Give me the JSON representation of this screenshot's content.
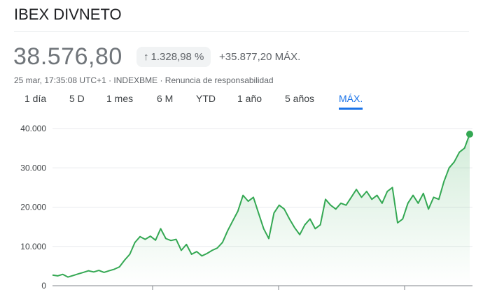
{
  "header": {
    "title": "IBEX DIVNETO"
  },
  "quote": {
    "price": "38.576,80",
    "change_pct": "1.328,98 %",
    "change_abs": "+35.877,20 MÁX.",
    "timestamp": "25 mar, 17:35:08 UTC+1",
    "exchange": "INDEXBME",
    "disclaimer": "Renuncia de responsabilidad",
    "separator": " · "
  },
  "tabs": [
    {
      "label": "1 día"
    },
    {
      "label": "5 D"
    },
    {
      "label": "1 mes"
    },
    {
      "label": "6 M"
    },
    {
      "label": "YTD"
    },
    {
      "label": "1 año"
    },
    {
      "label": "5 años"
    },
    {
      "label": "MÁX."
    }
  ],
  "colors": {
    "line": "#34a853",
    "accent": "#1a73e8"
  },
  "chart_data": {
    "type": "area",
    "title": "IBEX DIVNETO",
    "yticks": [
      "40.000",
      "30.000",
      "20.000",
      "10.000",
      "0"
    ],
    "ytick_values": [
      40000,
      30000,
      20000,
      10000,
      0
    ],
    "ylim": [
      0,
      40000
    ],
    "series": [
      {
        "name": "IBEX DIVNETO",
        "values": [
          2700,
          2500,
          2900,
          2200,
          2600,
          3000,
          3400,
          3800,
          3500,
          3900,
          3400,
          3800,
          4200,
          4800,
          6500,
          8000,
          11000,
          12500,
          11800,
          12600,
          11600,
          14500,
          12000,
          11500,
          11800,
          9000,
          10500,
          8000,
          8700,
          7600,
          8200,
          9000,
          9600,
          11000,
          14000,
          16500,
          19000,
          23000,
          21500,
          22500,
          18500,
          14500,
          12000,
          18500,
          20500,
          19500,
          17000,
          14800,
          13000,
          15500,
          17000,
          14500,
          15500,
          22000,
          20500,
          19500,
          21000,
          20500,
          22500,
          24500,
          22500,
          24000,
          22000,
          23000,
          21000,
          24000,
          25000,
          16000,
          17000,
          21000,
          23000,
          21000,
          23500,
          19500,
          22500,
          22000,
          26500,
          30000,
          31500,
          34000,
          35000,
          38576.8
        ]
      }
    ]
  }
}
